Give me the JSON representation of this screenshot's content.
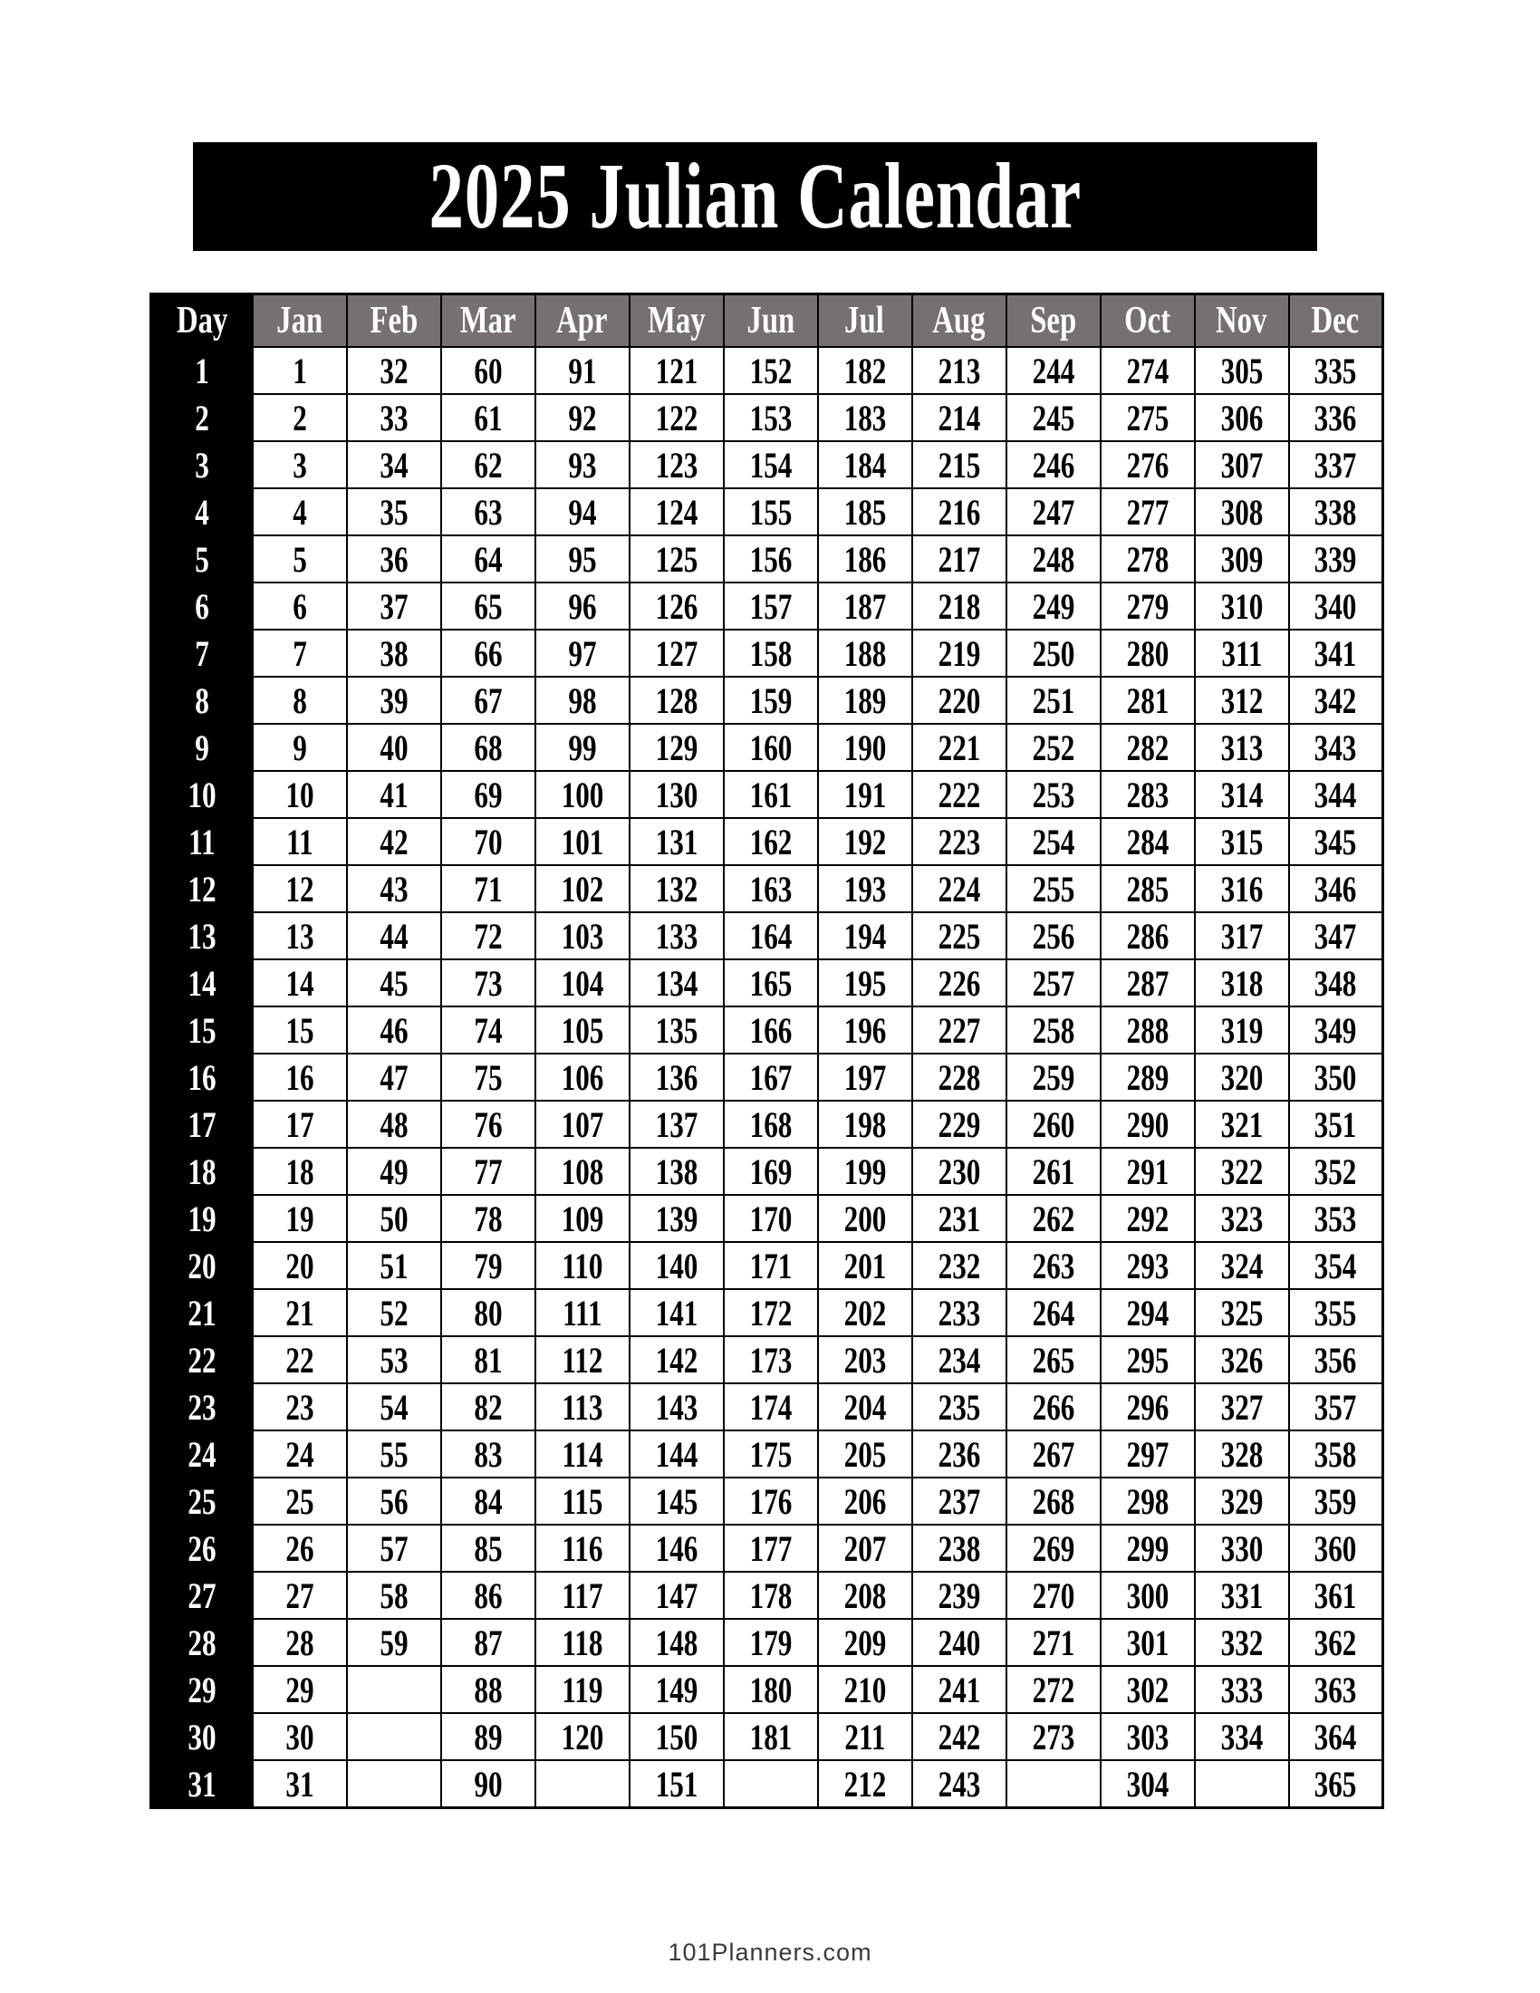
{
  "title": "2025 Julian Calendar",
  "footer": "101Planners.com",
  "colors": {
    "banner_bg": "#000000",
    "banner_text": "#ffffff",
    "header_bg": "#767170",
    "header_text": "#ffffff",
    "day_col_bg": "#000000",
    "day_col_text": "#ffffff",
    "cell_bg": "#ffffff",
    "cell_text": "#000000",
    "border": "#000000"
  },
  "table": {
    "day_header": "Day",
    "month_headers": [
      "Jan",
      "Feb",
      "Mar",
      "Apr",
      "May",
      "Jun",
      "Jul",
      "Aug",
      "Sep",
      "Oct",
      "Nov",
      "Dec"
    ],
    "rows": [
      {
        "day": "1",
        "values": [
          "1",
          "32",
          "60",
          "91",
          "121",
          "152",
          "182",
          "213",
          "244",
          "274",
          "305",
          "335"
        ]
      },
      {
        "day": "2",
        "values": [
          "2",
          "33",
          "61",
          "92",
          "122",
          "153",
          "183",
          "214",
          "245",
          "275",
          "306",
          "336"
        ]
      },
      {
        "day": "3",
        "values": [
          "3",
          "34",
          "62",
          "93",
          "123",
          "154",
          "184",
          "215",
          "246",
          "276",
          "307",
          "337"
        ]
      },
      {
        "day": "4",
        "values": [
          "4",
          "35",
          "63",
          "94",
          "124",
          "155",
          "185",
          "216",
          "247",
          "277",
          "308",
          "338"
        ]
      },
      {
        "day": "5",
        "values": [
          "5",
          "36",
          "64",
          "95",
          "125",
          "156",
          "186",
          "217",
          "248",
          "278",
          "309",
          "339"
        ]
      },
      {
        "day": "6",
        "values": [
          "6",
          "37",
          "65",
          "96",
          "126",
          "157",
          "187",
          "218",
          "249",
          "279",
          "310",
          "340"
        ]
      },
      {
        "day": "7",
        "values": [
          "7",
          "38",
          "66",
          "97",
          "127",
          "158",
          "188",
          "219",
          "250",
          "280",
          "311",
          "341"
        ]
      },
      {
        "day": "8",
        "values": [
          "8",
          "39",
          "67",
          "98",
          "128",
          "159",
          "189",
          "220",
          "251",
          "281",
          "312",
          "342"
        ]
      },
      {
        "day": "9",
        "values": [
          "9",
          "40",
          "68",
          "99",
          "129",
          "160",
          "190",
          "221",
          "252",
          "282",
          "313",
          "343"
        ]
      },
      {
        "day": "10",
        "values": [
          "10",
          "41",
          "69",
          "100",
          "130",
          "161",
          "191",
          "222",
          "253",
          "283",
          "314",
          "344"
        ]
      },
      {
        "day": "11",
        "values": [
          "11",
          "42",
          "70",
          "101",
          "131",
          "162",
          "192",
          "223",
          "254",
          "284",
          "315",
          "345"
        ]
      },
      {
        "day": "12",
        "values": [
          "12",
          "43",
          "71",
          "102",
          "132",
          "163",
          "193",
          "224",
          "255",
          "285",
          "316",
          "346"
        ]
      },
      {
        "day": "13",
        "values": [
          "13",
          "44",
          "72",
          "103",
          "133",
          "164",
          "194",
          "225",
          "256",
          "286",
          "317",
          "347"
        ]
      },
      {
        "day": "14",
        "values": [
          "14",
          "45",
          "73",
          "104",
          "134",
          "165",
          "195",
          "226",
          "257",
          "287",
          "318",
          "348"
        ]
      },
      {
        "day": "15",
        "values": [
          "15",
          "46",
          "74",
          "105",
          "135",
          "166",
          "196",
          "227",
          "258",
          "288",
          "319",
          "349"
        ]
      },
      {
        "day": "16",
        "values": [
          "16",
          "47",
          "75",
          "106",
          "136",
          "167",
          "197",
          "228",
          "259",
          "289",
          "320",
          "350"
        ]
      },
      {
        "day": "17",
        "values": [
          "17",
          "48",
          "76",
          "107",
          "137",
          "168",
          "198",
          "229",
          "260",
          "290",
          "321",
          "351"
        ]
      },
      {
        "day": "18",
        "values": [
          "18",
          "49",
          "77",
          "108",
          "138",
          "169",
          "199",
          "230",
          "261",
          "291",
          "322",
          "352"
        ]
      },
      {
        "day": "19",
        "values": [
          "19",
          "50",
          "78",
          "109",
          "139",
          "170",
          "200",
          "231",
          "262",
          "292",
          "323",
          "353"
        ]
      },
      {
        "day": "20",
        "values": [
          "20",
          "51",
          "79",
          "110",
          "140",
          "171",
          "201",
          "232",
          "263",
          "293",
          "324",
          "354"
        ]
      },
      {
        "day": "21",
        "values": [
          "21",
          "52",
          "80",
          "111",
          "141",
          "172",
          "202",
          "233",
          "264",
          "294",
          "325",
          "355"
        ]
      },
      {
        "day": "22",
        "values": [
          "22",
          "53",
          "81",
          "112",
          "142",
          "173",
          "203",
          "234",
          "265",
          "295",
          "326",
          "356"
        ]
      },
      {
        "day": "23",
        "values": [
          "23",
          "54",
          "82",
          "113",
          "143",
          "174",
          "204",
          "235",
          "266",
          "296",
          "327",
          "357"
        ]
      },
      {
        "day": "24",
        "values": [
          "24",
          "55",
          "83",
          "114",
          "144",
          "175",
          "205",
          "236",
          "267",
          "297",
          "328",
          "358"
        ]
      },
      {
        "day": "25",
        "values": [
          "25",
          "56",
          "84",
          "115",
          "145",
          "176",
          "206",
          "237",
          "268",
          "298",
          "329",
          "359"
        ]
      },
      {
        "day": "26",
        "values": [
          "26",
          "57",
          "85",
          "116",
          "146",
          "177",
          "207",
          "238",
          "269",
          "299",
          "330",
          "360"
        ]
      },
      {
        "day": "27",
        "values": [
          "27",
          "58",
          "86",
          "117",
          "147",
          "178",
          "208",
          "239",
          "270",
          "300",
          "331",
          "361"
        ]
      },
      {
        "day": "28",
        "values": [
          "28",
          "59",
          "87",
          "118",
          "148",
          "179",
          "209",
          "240",
          "271",
          "301",
          "332",
          "362"
        ]
      },
      {
        "day": "29",
        "values": [
          "29",
          "",
          "88",
          "119",
          "149",
          "180",
          "210",
          "241",
          "272",
          "302",
          "333",
          "363"
        ]
      },
      {
        "day": "30",
        "values": [
          "30",
          "",
          "89",
          "120",
          "150",
          "181",
          "211",
          "242",
          "273",
          "303",
          "334",
          "364"
        ]
      },
      {
        "day": "31",
        "values": [
          "31",
          "",
          "90",
          "",
          "151",
          "",
          "212",
          "243",
          "",
          "304",
          "",
          "365"
        ]
      }
    ]
  }
}
